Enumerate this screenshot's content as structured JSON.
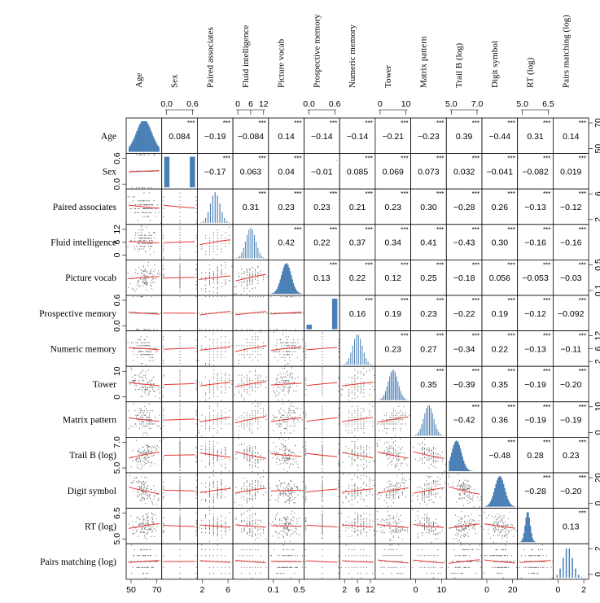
{
  "chart_data": {
    "type": "scatter",
    "subtype": "scatterplot-matrix",
    "variables": [
      "Age",
      "Sex",
      "Paired associates",
      "Fluid intelligence",
      "Picture vocab",
      "Prospective memory",
      "Numeric memory",
      "Tower",
      "Matrix pattern",
      "Trail B (log)",
      "Digit symbol",
      "RT (log)",
      "Pairs matching (log)"
    ],
    "column_labels": [
      "Age",
      "Sex",
      "Paired associates",
      "Fluid intelligence",
      "Picture vocab",
      "Prospective memory",
      "Numeric memory",
      "Tower",
      "Matrix pattern",
      "Trail B (log)",
      "Digit symbol",
      "RT (log)",
      "Pairs matching (log)"
    ],
    "top_axis_ticks": [
      [],
      [
        "0.0",
        "0.6"
      ],
      [],
      [
        "0",
        "6",
        "12"
      ],
      [],
      [
        "0.0",
        "0.6"
      ],
      [],
      [
        "0",
        "10"
      ],
      [],
      [
        "5.0",
        "7.0"
      ],
      [],
      [
        "5.0",
        "6.5"
      ],
      []
    ],
    "bottom_axis_ticks": [
      [
        "50",
        "70"
      ],
      [],
      [
        "2",
        "6"
      ],
      [],
      [
        "0.1",
        "0.5"
      ],
      [],
      [
        "2",
        "6",
        "12"
      ],
      [],
      [
        "0",
        "10"
      ],
      [],
      [
        "0",
        "20"
      ],
      [],
      [
        "0",
        "2"
      ]
    ],
    "right_axis_ticks": [
      [
        "50",
        "70"
      ],
      [],
      [
        "2",
        "6"
      ],
      [],
      [
        "0.1",
        "0.5"
      ],
      [],
      [
        "2",
        "6",
        "12"
      ],
      [],
      [
        "0",
        "10"
      ],
      [],
      [
        "0",
        "20"
      ],
      [],
      [
        "0",
        "2"
      ]
    ],
    "left_axis_ticks": [
      [],
      [
        "0.0",
        "0.6"
      ],
      [],
      [
        "0",
        "6",
        "12"
      ],
      [],
      [
        "0.0",
        "0.6"
      ],
      [],
      [
        "0",
        "10"
      ],
      [],
      [
        "5.0",
        "7.0"
      ],
      [],
      [
        "5.0",
        "6.5"
      ],
      []
    ],
    "correlations": [
      [
        null,
        "0.084",
        "−0.19",
        "−0.084",
        "0.14",
        "−0.14",
        "−0.14",
        "−0.21",
        "−0.23",
        "0.39",
        "−0.44",
        "0.31",
        "0.14"
      ],
      [
        null,
        null,
        "−0.17",
        "0.063",
        "0.04",
        "−0.01",
        "0.085",
        "0.069",
        "0.073",
        "0.032",
        "−0.041",
        "−0.082",
        "0.019"
      ],
      [
        null,
        null,
        null,
        "0.31",
        "0.23",
        "0.23",
        "0.21",
        "0.23",
        "0.30",
        "−0.28",
        "0.26",
        "−0.13",
        "−0.12"
      ],
      [
        null,
        null,
        null,
        null,
        "0.42",
        "0.22",
        "0.37",
        "0.34",
        "0.41",
        "−0.43",
        "0.30",
        "−0.16",
        "−0.16"
      ],
      [
        null,
        null,
        null,
        null,
        null,
        "0.13",
        "0.22",
        "0.12",
        "0.25",
        "−0.18",
        "0.056",
        "−0.053",
        "−0.03"
      ],
      [
        null,
        null,
        null,
        null,
        null,
        null,
        "0.16",
        "0.19",
        "0.23",
        "−0.22",
        "0.19",
        "−0.12",
        "−0.092"
      ],
      [
        null,
        null,
        null,
        null,
        null,
        null,
        null,
        "0.23",
        "0.27",
        "−0.34",
        "0.22",
        "−0.13",
        "−0.11"
      ],
      [
        null,
        null,
        null,
        null,
        null,
        null,
        null,
        null,
        "0.35",
        "−0.39",
        "0.35",
        "−0.19",
        "−0.20"
      ],
      [
        null,
        null,
        null,
        null,
        null,
        null,
        null,
        null,
        null,
        "−0.42",
        "0.36",
        "−0.19",
        "−0.19"
      ],
      [
        null,
        null,
        null,
        null,
        null,
        null,
        null,
        null,
        null,
        null,
        "−0.48",
        "0.28",
        "0.23"
      ],
      [
        null,
        null,
        null,
        null,
        null,
        null,
        null,
        null,
        null,
        null,
        null,
        "−0.28",
        "−0.20"
      ],
      [
        null,
        null,
        null,
        null,
        null,
        null,
        null,
        null,
        null,
        null,
        null,
        null,
        "0.13"
      ],
      [
        null,
        null,
        null,
        null,
        null,
        null,
        null,
        null,
        null,
        null,
        null,
        null,
        null
      ]
    ],
    "significance": [
      [
        null,
        "***",
        "***",
        "***",
        "***",
        "***",
        "***",
        "***",
        "***",
        "***",
        "***",
        "***",
        "***"
      ],
      [
        null,
        null,
        "***",
        "***",
        "***",
        ".",
        "***",
        "***",
        "***",
        "***",
        "***",
        "***",
        "***"
      ],
      [
        null,
        null,
        null,
        "***",
        "***",
        "***",
        "***",
        "***",
        "***",
        "***",
        "***",
        "***",
        "***"
      ],
      [
        null,
        null,
        null,
        null,
        "***",
        "***",
        "***",
        "***",
        "***",
        "***",
        "***",
        "***",
        "***"
      ],
      [
        null,
        null,
        null,
        null,
        null,
        "***",
        "***",
        "***",
        "***",
        "***",
        "***",
        "***",
        "***"
      ],
      [
        null,
        null,
        null,
        null,
        null,
        null,
        "***",
        "***",
        "***",
        "***",
        "***",
        "***",
        "***"
      ],
      [
        null,
        null,
        null,
        null,
        null,
        null,
        null,
        "***",
        "***",
        "***",
        "***",
        "***",
        "***"
      ],
      [
        null,
        null,
        null,
        null,
        null,
        null,
        null,
        null,
        "***",
        "***",
        "***",
        "***",
        "***"
      ],
      [
        null,
        null,
        null,
        null,
        null,
        null,
        null,
        null,
        null,
        "***",
        "***",
        "***",
        "***"
      ],
      [
        null,
        null,
        null,
        null,
        null,
        null,
        null,
        null,
        null,
        null,
        "***",
        "***",
        "***"
      ],
      [
        null,
        null,
        null,
        null,
        null,
        null,
        null,
        null,
        null,
        null,
        null,
        "***",
        "***"
      ],
      [
        null,
        null,
        null,
        null,
        null,
        null,
        null,
        null,
        null,
        null,
        null,
        null,
        "***"
      ],
      [
        null,
        null,
        null,
        null,
        null,
        null,
        null,
        null,
        null,
        null,
        null,
        null,
        null
      ]
    ],
    "diagonal": "histogram",
    "lower_panels": "scatter with red loess fit",
    "point_color": "#000000",
    "fit_color": "#e8322d",
    "histogram_color": "#4a7fb5"
  }
}
